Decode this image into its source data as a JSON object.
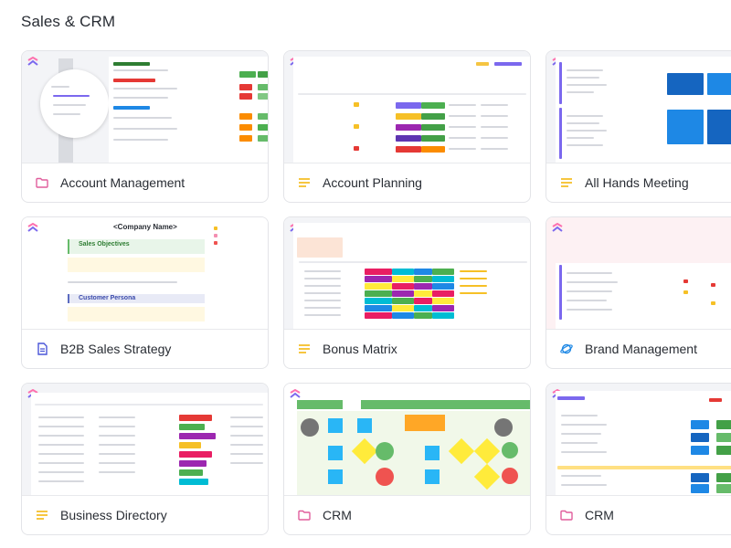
{
  "section": {
    "title": "Sales & CRM"
  },
  "templates": [
    {
      "id": "account-management",
      "label": "Account Management",
      "icon": "folder-icon",
      "icon_color": "#e05d9c"
    },
    {
      "id": "account-planning",
      "label": "Account Planning",
      "icon": "list-view-icon",
      "icon_color": "#f4b400"
    },
    {
      "id": "all-hands-meeting",
      "label": "All Hands Meeting",
      "icon": "list-view-icon",
      "icon_color": "#f4b400"
    },
    {
      "id": "b2b-sales-strategy",
      "label": "B2B Sales Strategy",
      "icon": "document-icon",
      "icon_color": "#4a56d8"
    },
    {
      "id": "bonus-matrix",
      "label": "Bonus Matrix",
      "icon": "list-view-icon",
      "icon_color": "#f4b400"
    },
    {
      "id": "brand-management",
      "label": "Brand Management",
      "icon": "planet-icon",
      "icon_color": "#1e88e5"
    },
    {
      "id": "business-directory",
      "label": "Business Directory",
      "icon": "list-view-icon",
      "icon_color": "#f4b400"
    },
    {
      "id": "crm-whiteboard",
      "label": "CRM",
      "icon": "folder-icon",
      "icon_color": "#e05d9c"
    },
    {
      "id": "crm-folder",
      "label": "CRM",
      "icon": "folder-icon",
      "icon_color": "#e05d9c"
    }
  ],
  "previews": {
    "b2b": {
      "company": "<Company Name>",
      "sales_objectives": "Sales Objectives",
      "customer_persona": "Customer Persona"
    }
  },
  "colors": {
    "accent_pink": "#e05d9c",
    "accent_yellow": "#f4b400",
    "accent_blue": "#4a56d8"
  }
}
